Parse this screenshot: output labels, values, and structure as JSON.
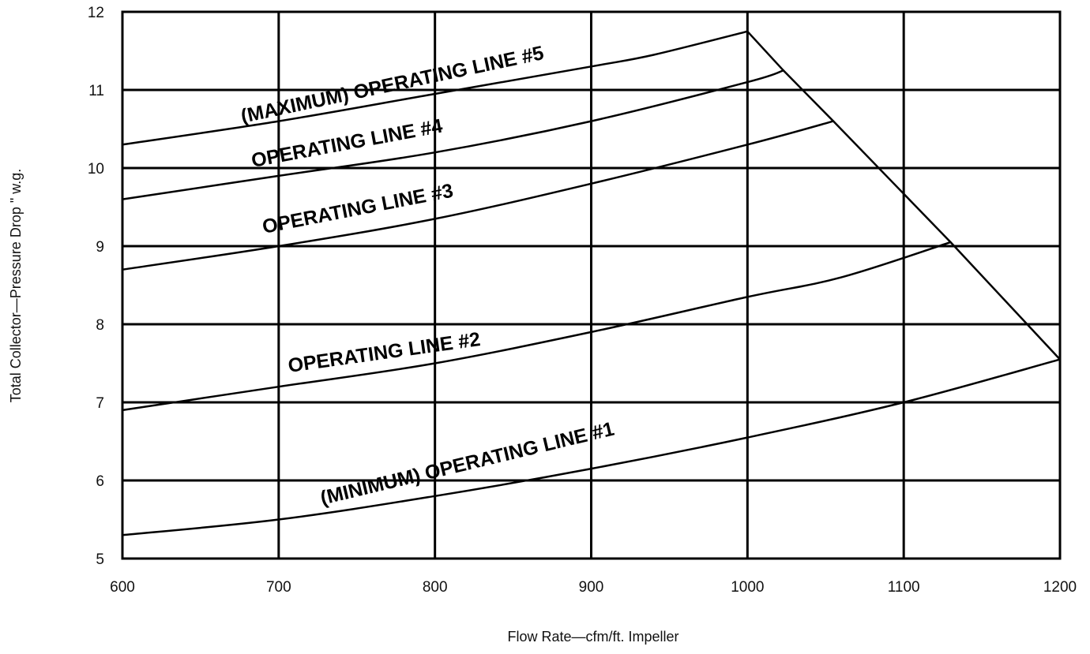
{
  "chart_data": {
    "type": "line",
    "title": "",
    "xlabel": "Flow Rate—cfm/ft. Impeller",
    "ylabel": "Total Collector—Pressure Drop \" w.g.",
    "xlim": [
      600,
      1200
    ],
    "ylim": [
      5,
      12
    ],
    "x_ticks": [
      "600",
      "700",
      "800",
      "900",
      "1000",
      "1100",
      "1200"
    ],
    "y_ticks": [
      "5",
      "6",
      "7",
      "8",
      "9",
      "10",
      "11",
      "12"
    ],
    "grid": true,
    "legend": "none",
    "series": [
      {
        "name": "(MINIMUM) OPERATING LINE #1",
        "x": [
          600,
          700,
          800,
          900,
          1000,
          1100,
          1200
        ],
        "y": [
          5.3,
          5.5,
          5.8,
          6.15,
          6.55,
          7.0,
          7.55
        ]
      },
      {
        "name": "OPERATING LINE #2",
        "x": [
          600,
          700,
          800,
          900,
          1000,
          1060,
          1130
        ],
        "y": [
          6.9,
          7.2,
          7.5,
          7.9,
          8.35,
          8.6,
          9.05
        ]
      },
      {
        "name": "OPERATING LINE #3",
        "x": [
          600,
          700,
          800,
          900,
          1000,
          1055
        ],
        "y": [
          8.7,
          9.0,
          9.35,
          9.8,
          10.3,
          10.6
        ]
      },
      {
        "name": "OPERATING LINE #4",
        "x": [
          600,
          700,
          800,
          900,
          1000,
          1023
        ],
        "y": [
          9.6,
          9.9,
          10.2,
          10.6,
          11.1,
          11.25
        ]
      },
      {
        "name": "(MAXIMUM) OPERATING LINE #5",
        "x": [
          600,
          700,
          800,
          900,
          940,
          1000
        ],
        "y": [
          10.3,
          10.6,
          10.95,
          11.3,
          11.45,
          11.75
        ]
      },
      {
        "name": "",
        "x": [
          1000,
          1023,
          1055,
          1130,
          1200
        ],
        "y": [
          11.75,
          11.25,
          10.6,
          9.05,
          7.55
        ]
      }
    ]
  }
}
